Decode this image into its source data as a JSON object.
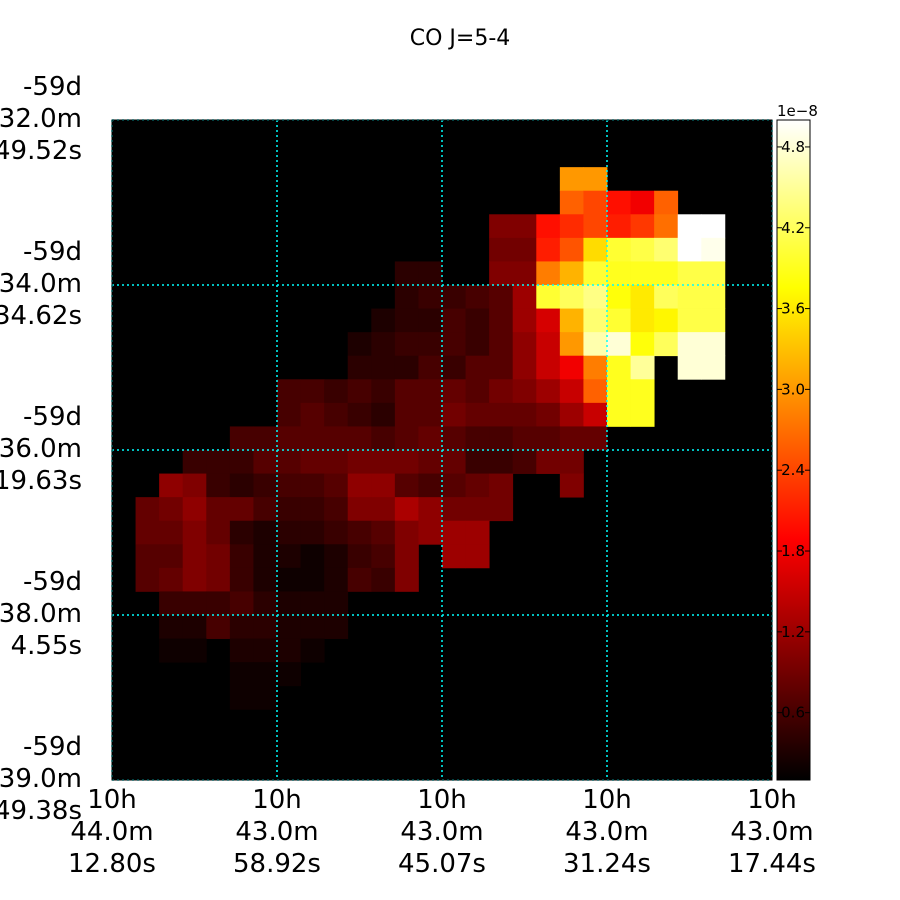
{
  "chart_data": {
    "type": "heatmap",
    "title": "CO J=5-4",
    "xlabel": "",
    "ylabel": "",
    "colormap": "hot",
    "grid": true,
    "grid_color": "#00ffff",
    "x_ticks": [
      [
        "10h",
        "44.0m",
        "12.80s"
      ],
      [
        "10h",
        "43.0m",
        "58.92s"
      ],
      [
        "10h",
        "43.0m",
        "45.07s"
      ],
      [
        "10h",
        "43.0m",
        "31.24s"
      ],
      [
        "10h",
        "43.0m",
        "17.44s"
      ]
    ],
    "y_ticks": [
      [
        "-59d",
        "32.0m",
        "49.52s"
      ],
      [
        "-59d",
        "34.0m",
        "34.62s"
      ],
      [
        "-59d",
        "36.0m",
        "19.63s"
      ],
      [
        "-59d",
        "38.0m",
        "4.55s"
      ],
      [
        "-59d",
        "39.0m",
        "49.38s"
      ]
    ],
    "colorbar": {
      "exponent_label": "1e−8",
      "min": 0.1,
      "max": 5.0,
      "ticks": [
        0.6,
        1.2,
        1.8,
        2.4,
        3.0,
        3.6,
        4.2,
        4.8
      ],
      "tick_labels": [
        "0.6",
        "1.2",
        "1.8",
        "2.4",
        "3.0",
        "3.6",
        "4.2",
        "4.8"
      ]
    },
    "values": [
      [
        0,
        0,
        0,
        0,
        0,
        0,
        0,
        0,
        0,
        0,
        0,
        0,
        0,
        0,
        0,
        0,
        0,
        0,
        0,
        0,
        0,
        0,
        0,
        0,
        0,
        0,
        0,
        0
      ],
      [
        0,
        0,
        0,
        0,
        0,
        0,
        0,
        0,
        0,
        0,
        0,
        0,
        0,
        0,
        0,
        0,
        0,
        0,
        0,
        0,
        0,
        0,
        0,
        0,
        0,
        0,
        0,
        0
      ],
      [
        0,
        0,
        0,
        0,
        0,
        0,
        0,
        0,
        0,
        0,
        0,
        0,
        0,
        0,
        0,
        0,
        0,
        0,
        0,
        3.0,
        3.0,
        0,
        0,
        0,
        0,
        0,
        0,
        0
      ],
      [
        0,
        0,
        0,
        0,
        0,
        0,
        0,
        0,
        0,
        0,
        0,
        0,
        0,
        0,
        0,
        0,
        0,
        0,
        0,
        2.6,
        2.4,
        2.0,
        1.8,
        2.6,
        0,
        0,
        0,
        0
      ],
      [
        0,
        0,
        0,
        0,
        0,
        0,
        0,
        0,
        0,
        0,
        0,
        0,
        0,
        0,
        0,
        0,
        1.0,
        1.0,
        2.0,
        2.2,
        2.4,
        2.1,
        2.3,
        2.7,
        5.0,
        5.0,
        0,
        0
      ],
      [
        0,
        0,
        0,
        0,
        0,
        0,
        0,
        0,
        0,
        0,
        0,
        0,
        0,
        0,
        0,
        0,
        0.9,
        0.9,
        2.1,
        2.5,
        3.5,
        4.0,
        4.1,
        4.3,
        5.0,
        4.9,
        0,
        0
      ],
      [
        0,
        0,
        0,
        0,
        0,
        0,
        0,
        0,
        0,
        0,
        0,
        0,
        0.4,
        0.4,
        0,
        0,
        1.0,
        1.0,
        2.8,
        3.2,
        4.0,
        3.9,
        3.9,
        3.9,
        4.1,
        4.1,
        0,
        0
      ],
      [
        0,
        0,
        0,
        0,
        0,
        0,
        0,
        0,
        0,
        0,
        0,
        0,
        0.4,
        0.5,
        0.5,
        0.6,
        0.7,
        1.2,
        4.0,
        4.2,
        4.4,
        3.8,
        3.6,
        4.2,
        4.1,
        4.1,
        0,
        0
      ],
      [
        0,
        0,
        0,
        0,
        0,
        0,
        0,
        0,
        0,
        0,
        0,
        0.3,
        0.4,
        0.4,
        0.6,
        0.5,
        0.7,
        1.2,
        1.6,
        3.2,
        4.3,
        4.0,
        3.6,
        3.7,
        4.1,
        4.1,
        0,
        0
      ],
      [
        0,
        0,
        0,
        0,
        0,
        0,
        0,
        0,
        0,
        0,
        0.3,
        0.4,
        0.5,
        0.5,
        0.6,
        0.5,
        0.7,
        1.1,
        1.5,
        3.0,
        4.6,
        4.8,
        3.8,
        4.2,
        4.8,
        4.8,
        0,
        0
      ],
      [
        0,
        0,
        0,
        0,
        0,
        0,
        0,
        0,
        0,
        0,
        0.4,
        0.4,
        0.4,
        0.6,
        0.5,
        0.7,
        0.7,
        1.1,
        1.5,
        1.8,
        2.8,
        3.9,
        4.5,
        0,
        4.8,
        4.8,
        0,
        0
      ],
      [
        0,
        0,
        0,
        0,
        0,
        0,
        0,
        0.6,
        0.6,
        0.5,
        0.6,
        0.5,
        0.7,
        0.7,
        0.8,
        0.7,
        0.9,
        1.0,
        1.2,
        1.5,
        2.6,
        3.9,
        3.9,
        0,
        0,
        0,
        0,
        0
      ],
      [
        0,
        0,
        0,
        0,
        0,
        0,
        0,
        0.6,
        0.7,
        0.6,
        0.5,
        0.4,
        0.7,
        0.7,
        0.9,
        0.8,
        0.8,
        0.8,
        0.9,
        1.2,
        1.5,
        3.9,
        3.9,
        0,
        0,
        0,
        0,
        0
      ],
      [
        0,
        0,
        0,
        0,
        0,
        0.6,
        0.6,
        0.7,
        0.7,
        0.7,
        0.7,
        0.6,
        0.7,
        0.8,
        0.7,
        0.6,
        0.6,
        0.7,
        0.7,
        0.8,
        0.8,
        0,
        0,
        0,
        0,
        0,
        0,
        0
      ],
      [
        0,
        0,
        0,
        0.5,
        0.5,
        0.5,
        0.7,
        0.7,
        0.8,
        0.8,
        0.9,
        0.9,
        0.9,
        0.8,
        0.8,
        0.5,
        0.5,
        0.6,
        0.9,
        0.9,
        0,
        0,
        0,
        0,
        0,
        0,
        0,
        0
      ],
      [
        0,
        0,
        1.1,
        1.0,
        0.5,
        0.4,
        0.5,
        0.6,
        0.6,
        0.7,
        1.1,
        1.1,
        0.7,
        0.6,
        0.7,
        0.8,
        0.9,
        0,
        0,
        1.0,
        0,
        0,
        0,
        0,
        0,
        0,
        0,
        0
      ],
      [
        0,
        0.8,
        0.9,
        1.1,
        0.8,
        0.8,
        0.6,
        0.5,
        0.5,
        0.6,
        1.0,
        1.0,
        1.3,
        1.1,
        0.9,
        0.9,
        0.9,
        0,
        0,
        0,
        0,
        0,
        0,
        0,
        0,
        0,
        0,
        0
      ],
      [
        0,
        0.8,
        0.8,
        1.0,
        0.8,
        0.4,
        0.3,
        0.4,
        0.4,
        0.5,
        0.6,
        0.7,
        1.0,
        1.1,
        1.2,
        1.2,
        0,
        0,
        0,
        0,
        0,
        0,
        0,
        0,
        0,
        0,
        0,
        0
      ],
      [
        0,
        0.7,
        0.7,
        1.0,
        0.9,
        0.5,
        0.3,
        0.3,
        0.2,
        0.3,
        0.5,
        0.6,
        1.0,
        0,
        1.2,
        1.2,
        0,
        0,
        0,
        0,
        0,
        0,
        0,
        0,
        0,
        0,
        0,
        0
      ],
      [
        0,
        0.7,
        0.8,
        1.0,
        0.9,
        0.5,
        0.3,
        0.2,
        0.2,
        0.3,
        0.6,
        0.5,
        1.0,
        0,
        0,
        0,
        0,
        0,
        0,
        0,
        0,
        0,
        0,
        0,
        0,
        0,
        0,
        0
      ],
      [
        0,
        0,
        0.5,
        0.5,
        0.5,
        0.6,
        0.4,
        0.3,
        0.3,
        0.3,
        0,
        0,
        0,
        0,
        0,
        0,
        0,
        0,
        0,
        0,
        0,
        0,
        0,
        0,
        0,
        0,
        0,
        0
      ],
      [
        0,
        0,
        0.3,
        0.3,
        0.6,
        0.4,
        0.4,
        0.3,
        0.3,
        0.3,
        0,
        0,
        0,
        0,
        0,
        0,
        0,
        0,
        0,
        0,
        0,
        0,
        0,
        0,
        0,
        0,
        0,
        0
      ],
      [
        0,
        0,
        0.2,
        0.2,
        0,
        0.3,
        0.3,
        0.3,
        0.2,
        0,
        0,
        0,
        0,
        0,
        0,
        0,
        0,
        0,
        0,
        0,
        0,
        0,
        0,
        0,
        0,
        0,
        0,
        0
      ],
      [
        0,
        0,
        0,
        0,
        0,
        0.2,
        0.2,
        0.2,
        0,
        0,
        0,
        0,
        0,
        0,
        0,
        0,
        0,
        0,
        0,
        0,
        0,
        0,
        0,
        0,
        0,
        0,
        0,
        0
      ],
      [
        0,
        0,
        0,
        0,
        0,
        0.2,
        0.2,
        0,
        0,
        0,
        0,
        0,
        0,
        0,
        0,
        0,
        0,
        0,
        0,
        0,
        0,
        0,
        0,
        0,
        0,
        0,
        0,
        0
      ],
      [
        0,
        0,
        0,
        0,
        0,
        0,
        0,
        0,
        0,
        0,
        0,
        0,
        0,
        0,
        0,
        0,
        0,
        0,
        0,
        0,
        0,
        0,
        0,
        0,
        0,
        0,
        0,
        0
      ],
      [
        0,
        0,
        0,
        0,
        0,
        0,
        0,
        0,
        0,
        0,
        0,
        0,
        0,
        0,
        0,
        0,
        0,
        0,
        0,
        0,
        0,
        0,
        0,
        0,
        0,
        0,
        0,
        0
      ],
      [
        0,
        0,
        0,
        0,
        0,
        0,
        0,
        0,
        0,
        0,
        0,
        0,
        0,
        0,
        0,
        0,
        0,
        0,
        0,
        0,
        0,
        0,
        0,
        0,
        0,
        0,
        0,
        0
      ]
    ]
  }
}
